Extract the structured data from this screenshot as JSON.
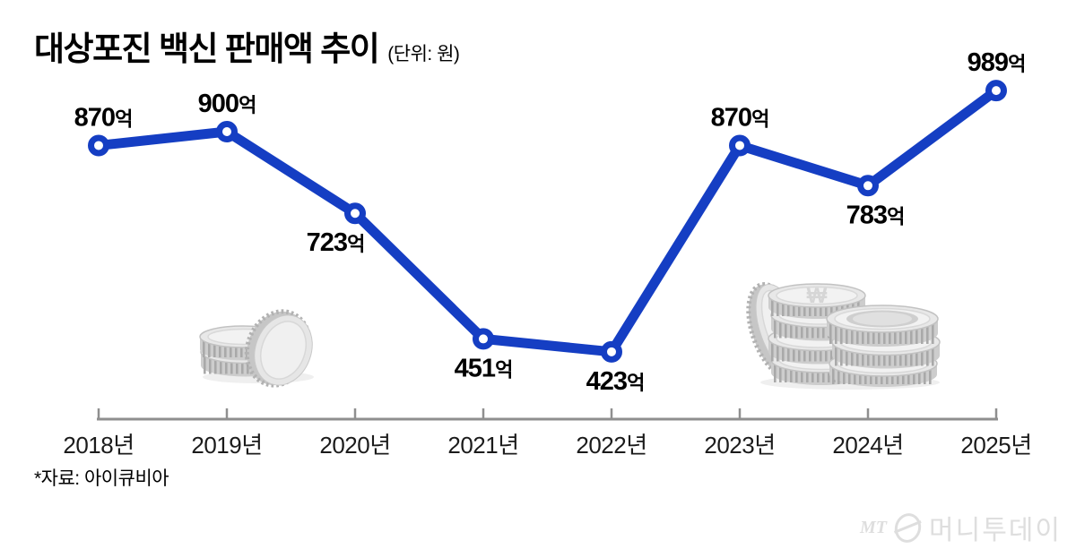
{
  "header": {
    "title": "대상포진 백신 판매액 추이",
    "unit": "(단위: 원)"
  },
  "chart_data": {
    "type": "line",
    "title": "대상포진 백신 판매액 추이",
    "unit_note": "(단위: 원)",
    "categories": [
      "2018년",
      "2019년",
      "2020년",
      "2021년",
      "2022년",
      "2023년",
      "2024년",
      "2025년"
    ],
    "values": [
      870,
      900,
      723,
      451,
      423,
      870,
      783,
      989
    ],
    "value_suffix": "억",
    "data_labels": [
      "870억",
      "900억",
      "723억",
      "451억",
      "423억",
      "870억",
      "783억",
      "989억"
    ],
    "label_sides": [
      "above",
      "above",
      "below",
      "below",
      "below",
      "above",
      "below",
      "above"
    ],
    "label_dx": [
      5,
      0,
      -22,
      0,
      4,
      0,
      8,
      0
    ],
    "ylim": [
      380,
      1030
    ],
    "line_color": "#153EC3",
    "marker_fill": "#ffffff",
    "axis_color": "#8f8f8f",
    "grid": false,
    "legend": false
  },
  "footer": {
    "source": "*자료: 아이큐비아"
  },
  "watermark": {
    "mt": "MT",
    "name": "머니투데이"
  },
  "icons": {
    "left_decoration": "coin-stack-icon",
    "right_decoration": "coin-stacks-icon",
    "logo": "moneytoday-circle-icon"
  }
}
